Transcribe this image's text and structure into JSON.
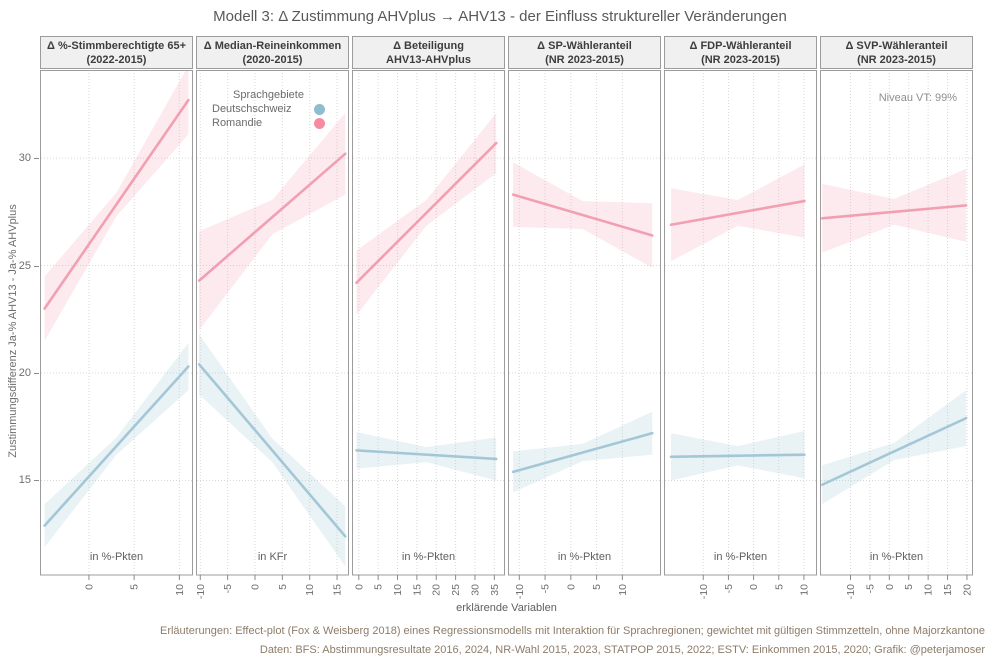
{
  "title": "Modell 3: Δ Zustimmung AHVplus → AHV13 - der Einfluss struktureller Veränderungen",
  "legend": {
    "title": "Sprachgebiete",
    "items": [
      {
        "label": "Deutschschweiz",
        "color": "#8fbdd0"
      },
      {
        "label": "Romandie",
        "color": "#f78ba1"
      }
    ]
  },
  "annotation": "Niveau VT: 99%",
  "captions": [
    "Erläuterungen: Effect-plot (Fox & Weisberg 2018) eines Regressionsmodells mit Interaktion für Sprachregionen; gewichtet mit gültigen Stimmzetteln, ohne Majorzkantone",
    "Daten: BFS: Abstimmungsresultate 2016, 2024, NR-Wahl 2015, 2023, STATPOP 2015, 2022; ESTV: Einkommen 2015, 2020; Grafik: @peterjamoser"
  ],
  "colors": {
    "background": "#ffffff",
    "border": "#9c9c9c",
    "grid": "#d8d8d8",
    "strip_bg": "#f0f0f0",
    "strip_text": "#3d3d3d",
    "axis_text": "#6e6e6e",
    "title_text": "#595959",
    "caption_text": "#8d7c6a",
    "tick_mark": "#8a8a8a",
    "deutschschweiz_line": "#a4c7d7",
    "deutschschweiz_band": "rgba(164,199,215,0.24)",
    "romandie_line": "#f29fb1",
    "romandie_band": "rgba(242,159,177,0.22)"
  },
  "chart_data": {
    "type": "line",
    "title": "Modell 3: Δ Zustimmung AHVplus → AHV13 - der Einfluss struktureller Veränderungen",
    "xlabel": "erklärende Variablen",
    "ylabel": "Zustimmungsdifferenz Ja-% AHV13 - Ja-% AHVplus",
    "ylim": [
      10.6,
      34.1
    ],
    "y_ticks": [
      15,
      20,
      25,
      30
    ],
    "grid": "dotted",
    "legend_position": "inside-top-of-second-panel",
    "series_names": [
      "Deutschschweiz",
      "Romandie"
    ],
    "note": "Effect plot: each facet shows linear marginal effects with hourglass-shaped confidence bands (band = half-width in y-units at start/middle/end of line).",
    "panels": [
      {
        "strip": [
          "Δ %-Stimmberechtigte 65+",
          "(2022-2015)"
        ],
        "unit": "in %-Pkten",
        "x_ticks": [
          0,
          5,
          10
        ],
        "xlim": [
          -5.3,
          11.4
        ],
        "series": {
          "deutschschweiz": {
            "x": [
              -4.9,
              11.0
            ],
            "y": [
              12.9,
              20.3
            ],
            "band": [
              1.0,
              0.4,
              1.1
            ]
          },
          "romandie": {
            "x": [
              -4.9,
              11.0
            ],
            "y": [
              23.0,
              32.7
            ],
            "band": [
              1.5,
              0.55,
              1.6
            ]
          }
        }
      },
      {
        "strip": [
          "Δ Median-Reineinkommen",
          "(2020-2015)"
        ],
        "unit": "in KFr",
        "x_ticks": [
          -10,
          -5,
          0,
          5,
          10,
          15
        ],
        "xlim": [
          -10.6,
          17.0
        ],
        "series": {
          "deutschschweiz": {
            "x": [
              -10.2,
              16.5
            ],
            "y": [
              20.4,
              12.4
            ],
            "band": [
              1.4,
              0.55,
              1.4
            ]
          },
          "romandie": {
            "x": [
              -10.2,
              16.5
            ],
            "y": [
              24.3,
              30.2
            ],
            "band": [
              2.3,
              0.8,
              1.9
            ]
          }
        }
      },
      {
        "strip": [
          "Δ Beteiligung",
          "AHV13-AHVplus"
        ],
        "unit": "in %-Pkten",
        "x_ticks": [
          0,
          5,
          10,
          15,
          20,
          25,
          30,
          35
        ],
        "xlim": [
          -1.5,
          37.5
        ],
        "series": {
          "deutschschweiz": {
            "x": [
              -0.6,
              35.5
            ],
            "y": [
              16.4,
              16.0
            ],
            "band": [
              0.85,
              0.35,
              1.0
            ]
          },
          "romandie": {
            "x": [
              -0.6,
              35.5
            ],
            "y": [
              24.2,
              30.7
            ],
            "band": [
              1.5,
              0.6,
              1.4
            ]
          }
        }
      },
      {
        "strip": [
          "Δ SP-Wähleranteil",
          "(NR 2023-2015)"
        ],
        "unit": "in %-Pkten",
        "x_ticks": [
          -10,
          -5,
          0,
          5,
          10
        ],
        "xlim": [
          -12.0,
          17.3
        ],
        "series": {
          "deutschschweiz": {
            "x": [
              -11.2,
              15.8
            ],
            "y": [
              15.4,
              17.2
            ],
            "band": [
              0.95,
              0.4,
              1.0
            ]
          },
          "romandie": {
            "x": [
              -11.2,
              15.8
            ],
            "y": [
              28.3,
              26.4
            ],
            "band": [
              1.5,
              0.65,
              1.5
            ]
          }
        }
      },
      {
        "strip": [
          "Δ FDP-Wähleranteil",
          "(NR 2023-2015)"
        ],
        "unit": "in %-Pkten",
        "x_ticks": [
          -10,
          -5,
          0,
          5,
          10
        ],
        "xlim": [
          -17.6,
          12.4
        ],
        "series": {
          "deutschschweiz": {
            "x": [
              -16.4,
              10.1
            ],
            "y": [
              16.1,
              16.2
            ],
            "band": [
              1.1,
              0.45,
              1.1
            ]
          },
          "romandie": {
            "x": [
              -16.4,
              10.1
            ],
            "y": [
              26.9,
              28.0
            ],
            "band": [
              1.7,
              0.6,
              1.7
            ]
          }
        }
      },
      {
        "strip": [
          "Δ SVP-Wähleranteil",
          "(NR 2023-2015)"
        ],
        "unit": "in %-Pkten",
        "x_ticks": [
          -10,
          -5,
          0,
          5,
          10,
          15,
          20
        ],
        "xlim": [
          -17.6,
          21.3
        ],
        "series": {
          "deutschschweiz": {
            "x": [
              -17.3,
              19.8
            ],
            "y": [
              14.8,
              17.9
            ],
            "band": [
              0.9,
              0.4,
              1.3
            ]
          },
          "romandie": {
            "x": [
              -17.3,
              19.8
            ],
            "y": [
              27.2,
              27.8
            ],
            "band": [
              1.6,
              0.6,
              1.7
            ]
          }
        }
      }
    ]
  }
}
